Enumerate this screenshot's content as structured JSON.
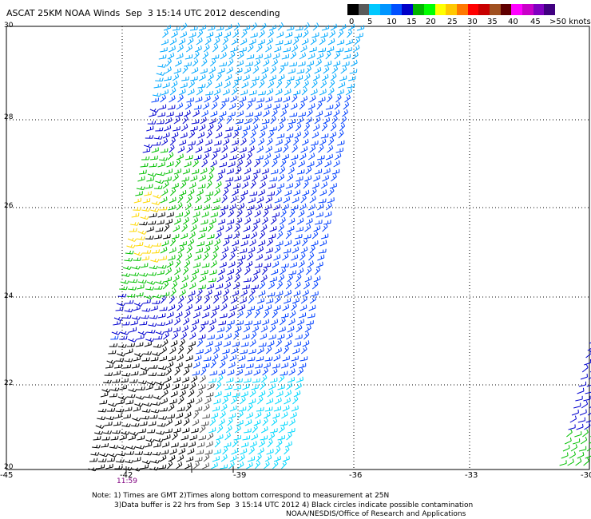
{
  "title": "ASCAT 25KM NOAA Winds  Sep  3 15:14 UTC 2012 descending",
  "legend": {
    "colors": [
      "#000000",
      "#5a5a5a",
      "#00c8ff",
      "#0096ff",
      "#0050ff",
      "#0000c8",
      "#00b400",
      "#00ff00",
      "#ffff00",
      "#ffc800",
      "#ff7800",
      "#ff0000",
      "#c80000",
      "#a05020",
      "#600000",
      "#ff00ff",
      "#c800c8",
      "#8000c0",
      "#400080"
    ],
    "labels": [
      "0",
      "5",
      "10",
      "15",
      "20",
      "25",
      "30",
      "35",
      "40",
      "45",
      ">50 knots"
    ]
  },
  "map": {
    "x_labels": [
      "-45",
      "-42",
      "-39",
      "-36",
      "-33",
      "-30"
    ],
    "y_labels": [
      "30",
      "28",
      "26",
      "24",
      "22",
      "20"
    ],
    "pass_time": "11:59"
  },
  "notes": {
    "line1": "Note: 1) Times are GMT 2)Times along bottom correspond to measurement at 25N",
    "line2": "3)Data buffer is 22 hrs from Sep  3 15:14 UTC 2012 4) Black circles indicate possible contamination",
    "line3": "NOAA/NESDIS/Office of Research and Applications"
  }
}
